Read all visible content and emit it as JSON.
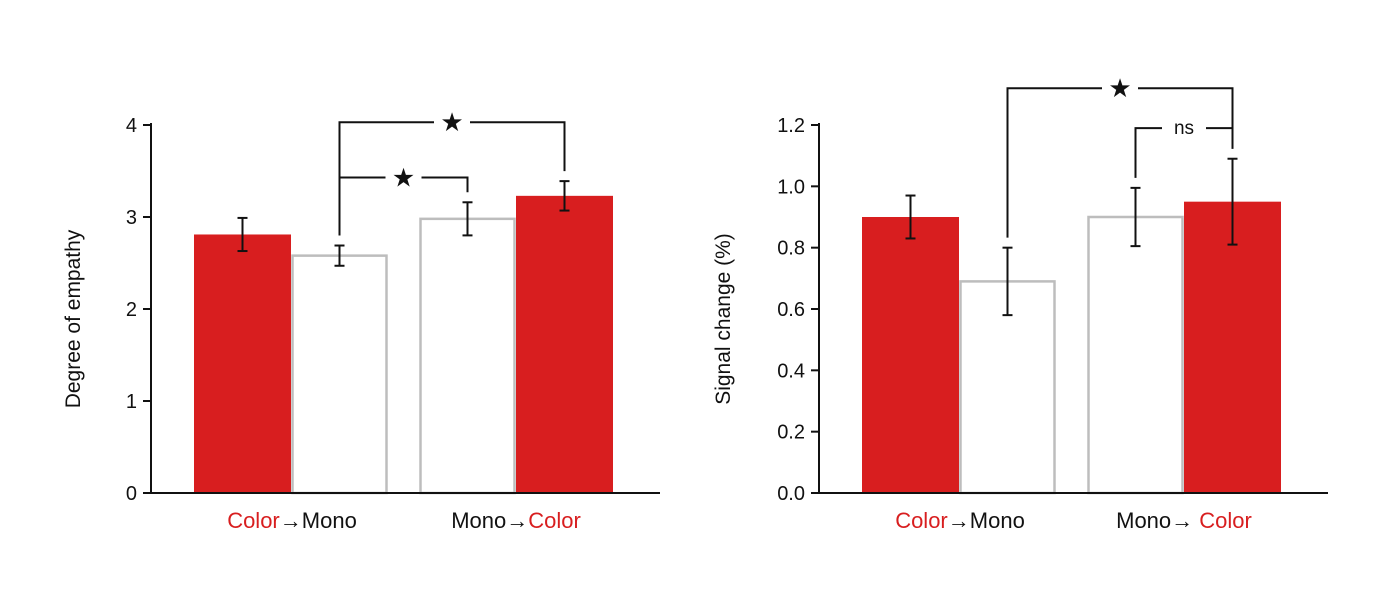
{
  "colors": {
    "color_bar": "#d81e1f",
    "mono_bar_stroke": "#bdbdbd",
    "color_text": "#d81e1f",
    "axis": "#111111"
  },
  "chart_data": [
    {
      "type": "bar",
      "ylabel": "Degree of empathy",
      "ylim": [
        0,
        4
      ],
      "yticks": [
        "0",
        "1",
        "2",
        "3",
        "4"
      ],
      "grid": false,
      "groups": [
        {
          "parts": [
            {
              "text": "Color",
              "colored": true
            },
            {
              "text": "→",
              "colored": false
            },
            {
              "text": "Mono",
              "colored": false
            }
          ]
        },
        {
          "parts": [
            {
              "text": "Mono",
              "colored": false
            },
            {
              "text": "→",
              "colored": false
            },
            {
              "text": "Color",
              "colored": true
            }
          ]
        }
      ],
      "bars": [
        {
          "group": 0,
          "fill": "color",
          "value": 2.81,
          "error": 0.18
        },
        {
          "group": 0,
          "fill": "mono",
          "value": 2.58,
          "error": 0.11
        },
        {
          "group": 1,
          "fill": "mono",
          "value": 2.98,
          "error": 0.18
        },
        {
          "group": 1,
          "fill": "color",
          "value": 3.23,
          "error": 0.16
        }
      ],
      "significance": [
        {
          "from_bar": 1,
          "to_bar": 3,
          "label": "★",
          "level": 4.03
        },
        {
          "from_bar": 1,
          "to_bar": 2,
          "label": "★",
          "level": 3.43
        }
      ]
    },
    {
      "type": "bar",
      "ylabel": "Signal change (%)",
      "ylim": [
        0,
        1.2
      ],
      "yticks": [
        "0.0",
        "0.2",
        "0.4",
        "0.6",
        "0.8",
        "1.0",
        "1.2"
      ],
      "grid": false,
      "groups": [
        {
          "parts": [
            {
              "text": "Color",
              "colored": true
            },
            {
              "text": "→",
              "colored": false
            },
            {
              "text": "Mono",
              "colored": false
            }
          ]
        },
        {
          "parts": [
            {
              "text": "Mono",
              "colored": false
            },
            {
              "text": "→",
              "colored": false
            },
            {
              "text": " Color",
              "colored": true
            }
          ]
        }
      ],
      "bars": [
        {
          "group": 0,
          "fill": "color",
          "value": 0.9,
          "error": 0.07
        },
        {
          "group": 0,
          "fill": "mono",
          "value": 0.69,
          "error": 0.11
        },
        {
          "group": 1,
          "fill": "mono",
          "value": 0.9,
          "error": 0.095
        },
        {
          "group": 1,
          "fill": "color",
          "value": 0.95,
          "error": 0.14
        }
      ],
      "significance": [
        {
          "from_bar": 1,
          "to_bar": 3,
          "label": "★",
          "level": 1.32
        },
        {
          "from_bar": 2,
          "to_bar": 3,
          "label": "ns",
          "level": 1.19
        }
      ]
    }
  ]
}
